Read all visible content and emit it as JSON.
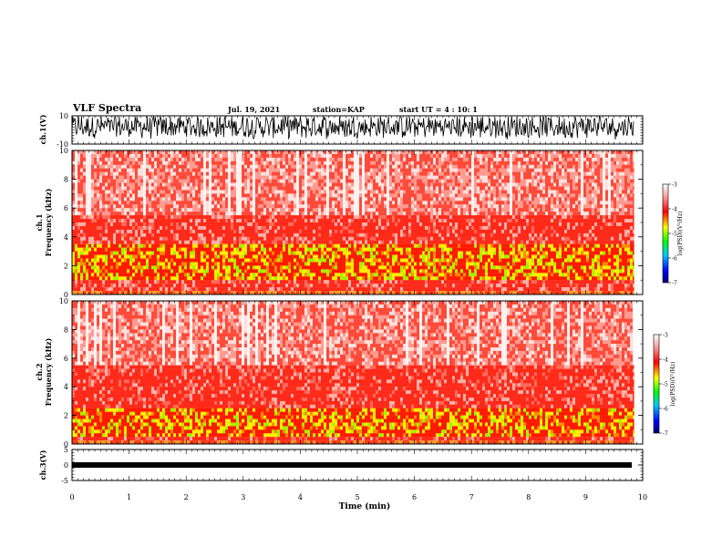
{
  "header": {
    "title": "VLF Spectra",
    "date": "Jul. 19, 2021",
    "station": "station=KAP",
    "start": "start UT =  4 : 10: 1"
  },
  "chart_data": [
    {
      "type": "line",
      "name": "ch1-waveform",
      "ylabel": "ch.1(V)",
      "ylim": [
        -10,
        10
      ],
      "yticks": [
        "10",
        "-10"
      ],
      "xlim": [
        0,
        10
      ],
      "trace": "dense oscillating signal roughly between -8 and 10 V"
    },
    {
      "type": "heatmap",
      "name": "ch1-spectrogram",
      "ylabel": "ch.1\nFrequency (kHz)",
      "ylabel_line1": "ch.1",
      "ylabel_line2": "Frequency (kHz)",
      "ylim": [
        0,
        10
      ],
      "yticks": [
        "0",
        "2",
        "4",
        "6",
        "8",
        "10"
      ],
      "xlim": [
        0,
        10
      ],
      "data_extent_min": 9.85,
      "intense_band_khz": [
        1,
        3.5
      ],
      "colorbar": {
        "label": "log(PSD)(V²/Hz)",
        "ticks": [
          "-3",
          "-4",
          "-5",
          "-6",
          "-7"
        ],
        "range": [
          -7,
          -3
        ]
      }
    },
    {
      "type": "heatmap",
      "name": "ch2-spectrogram",
      "ylabel_line1": "ch.2",
      "ylabel_line2": "Frequency (kHz)",
      "ylim": [
        0,
        10
      ],
      "yticks": [
        "0",
        "2",
        "4",
        "6",
        "8",
        "10"
      ],
      "xlim": [
        0,
        10
      ],
      "data_extent_min": 9.85,
      "intense_band_khz": [
        0.5,
        2.5
      ],
      "colorbar": {
        "label": "log(PSD)(V²/Hz)",
        "ticks": [
          "-3",
          "-4",
          "-5",
          "-6",
          "-7"
        ],
        "range": [
          -7,
          -3
        ]
      }
    },
    {
      "type": "line",
      "name": "ch3-waveform",
      "ylabel": "ch.3(V)",
      "ylim": [
        -5,
        5
      ],
      "yticks": [
        "5",
        "0",
        "-5"
      ],
      "xlim": [
        0,
        10
      ],
      "trace": "flat band near 0 V"
    }
  ],
  "xaxis": {
    "label": "Time (min)",
    "ticks": [
      "0",
      "1",
      "2",
      "3",
      "4",
      "5",
      "6",
      "7",
      "8",
      "9",
      "10"
    ]
  },
  "colors": {
    "low": "#00008b",
    "mid": "#00ff00",
    "high": "#ff0000",
    "top": "#ffffff"
  }
}
